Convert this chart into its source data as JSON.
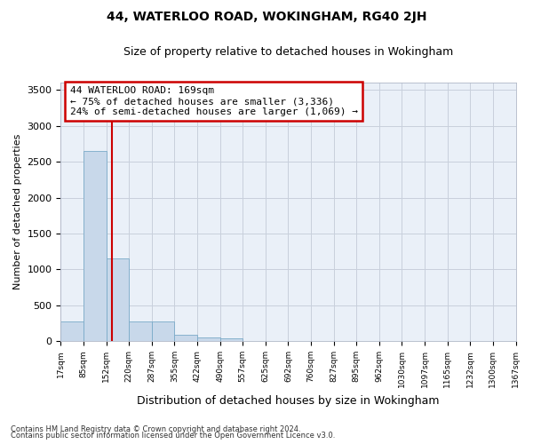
{
  "title1": "44, WATERLOO ROAD, WOKINGHAM, RG40 2JH",
  "title2": "Size of property relative to detached houses in Wokingham",
  "xlabel": "Distribution of detached houses by size in Wokingham",
  "ylabel": "Number of detached properties",
  "footnote1": "Contains HM Land Registry data © Crown copyright and database right 2024.",
  "footnote2": "Contains public sector information licensed under the Open Government Licence v3.0.",
  "annotation_line1": "44 WATERLOO ROAD: 169sqm",
  "annotation_line2": "← 75% of detached houses are smaller (3,336)",
  "annotation_line3": "24% of semi-detached houses are larger (1,069) →",
  "bar_values": [
    275,
    2650,
    1150,
    280,
    280,
    95,
    55,
    40,
    0,
    0,
    0,
    0,
    0,
    0,
    0,
    0,
    0,
    0,
    0,
    0
  ],
  "bar_color": "#c8d8ea",
  "bar_edgecolor": "#7aaac8",
  "tick_labels": [
    "17sqm",
    "85sqm",
    "152sqm",
    "220sqm",
    "287sqm",
    "355sqm",
    "422sqm",
    "490sqm",
    "557sqm",
    "625sqm",
    "692sqm",
    "760sqm",
    "827sqm",
    "895sqm",
    "962sqm",
    "1030sqm",
    "1097sqm",
    "1165sqm",
    "1232sqm",
    "1300sqm",
    "1367sqm"
  ],
  "ylim": [
    0,
    3600
  ],
  "yticks": [
    0,
    500,
    1000,
    1500,
    2000,
    2500,
    3000,
    3500
  ],
  "vline_color": "#cc0000",
  "annotation_box_color": "#cc0000",
  "grid_color": "#c8d0dc",
  "background_color": "#eaf0f8"
}
